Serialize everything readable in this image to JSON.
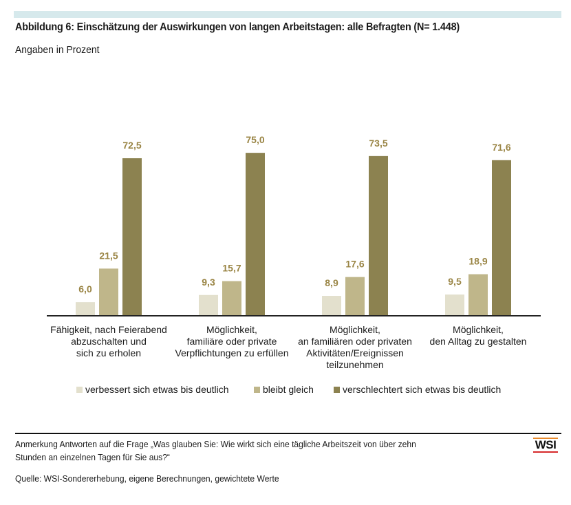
{
  "header": {
    "title": "Abbildung 6: Einschätzung der Auswirkungen von langen Arbeitstagen: alle Befragten (N= 1.448)",
    "subtitle": "Angaben in Prozent"
  },
  "chart_data": {
    "type": "bar",
    "title": "Abbildung 6: Einschätzung der Auswirkungen von langen Arbeitstagen: alle Befragten (N= 1.448)",
    "subtitle": "Angaben in Prozent",
    "xlabel": "",
    "ylabel": "",
    "ylim": [
      0,
      75
    ],
    "grid": false,
    "legend_position": "bottom",
    "categories": [
      [
        "Fähigkeit, nach Feierabend",
        "abzuschalten und",
        "sich zu erholen"
      ],
      [
        "Möglichkeit,",
        "familiäre oder private",
        "Verpflichtungen zu erfüllen"
      ],
      [
        "Möglichkeit,",
        "an familiären oder privaten",
        "Aktivitäten/Ereignissen",
        "teilzunehmen"
      ],
      [
        "Möglichkeit,",
        "den Alltag zu gestalten"
      ]
    ],
    "series": [
      {
        "name": "verbessert sich etwas bis deutlich",
        "color": "#e3e0cd",
        "values": [
          6.0,
          9.3,
          8.9,
          9.5
        ],
        "labels": [
          "6,0",
          "9,3",
          "8,9",
          "9,5"
        ]
      },
      {
        "name": "bleibt gleich",
        "color": "#bfb68a",
        "values": [
          21.5,
          15.7,
          17.6,
          18.9
        ],
        "labels": [
          "21,5",
          "15,7",
          "17,6",
          "18,9"
        ]
      },
      {
        "name": "verschlechtert sich etwas bis deutlich",
        "color": "#8c8250",
        "values": [
          72.5,
          75.0,
          73.5,
          71.6
        ],
        "labels": [
          "72,5",
          "75,0",
          "73,5",
          "71,6"
        ]
      }
    ],
    "value_label_color": "#9a8545"
  },
  "footer": {
    "note": [
      "Anmerkung Antworten auf die Frage „Was glauben Sie: Wie wirkt sich eine tägliche Arbeitszeit von über zehn",
      "Stunden an einzelnen Tagen für Sie aus?“"
    ],
    "source": "Quelle: WSI-Sondererhebung, eigene Berechnungen, gewichtete Werte",
    "logo": "WSI"
  }
}
